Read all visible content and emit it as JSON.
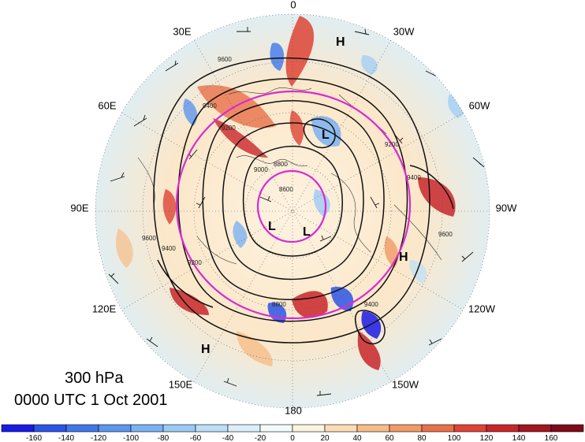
{
  "title": {
    "level": "300 hPa",
    "time": "0000 UTC 1 Oct 2001"
  },
  "longitude_labels": [
    "0",
    "30W",
    "60W",
    "90W",
    "120W",
    "150W",
    "180",
    "150E",
    "120E",
    "90E",
    "60E",
    "30E"
  ],
  "pressure_systems": [
    "H",
    "L",
    "L",
    "L",
    "H",
    "H"
  ],
  "contour_labels": [
    "9600",
    "9400",
    "9200",
    "9000",
    "8800",
    "8600"
  ],
  "colorbar": {
    "ticks": [
      "-160",
      "-140",
      "-120",
      "-100",
      "-80",
      "-60",
      "-40",
      "-20",
      "0",
      "20",
      "40",
      "60",
      "80",
      "100",
      "120",
      "140",
      "160"
    ],
    "colors": [
      "#1a1ae6",
      "#2b55e8",
      "#3f78ea",
      "#5c96ee",
      "#7bb2f2",
      "#9ccaf5",
      "#bcdff8",
      "#dbeffb",
      "#f4fbfd",
      "#fdf3e1",
      "#fbdcb5",
      "#f6bd88",
      "#f09a65",
      "#e8704a",
      "#dd4435",
      "#c9262a",
      "#a11621",
      "#800a18"
    ]
  },
  "colors": {
    "polar_circle": "#d92bd2",
    "contour": "#111111"
  }
}
